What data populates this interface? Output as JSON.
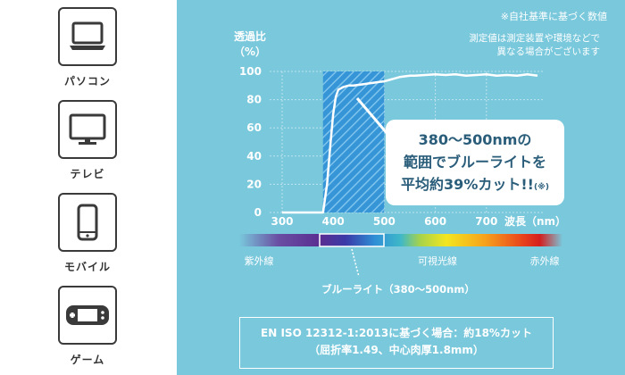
{
  "devices": [
    {
      "label": "パソコン",
      "icon": "laptop-icon"
    },
    {
      "label": "テレビ",
      "icon": "tv-icon"
    },
    {
      "label": "モバイル",
      "icon": "smartphone-icon"
    },
    {
      "label": "ゲーム",
      "icon": "game-console-icon"
    }
  ],
  "notes": {
    "company_standard": "※自社基準に基づく数値",
    "variance_line1": "測定値は測定装置や環境などで",
    "variance_line2": "異なる場合がございます"
  },
  "callout": {
    "line1": "380〜500nmの",
    "line2": "範囲でブルーライトを",
    "line3": "平均約39%カット!!",
    "line3_note": "(※)"
  },
  "spectrum": {
    "left_label": "紫外線",
    "center_label": "可視光線",
    "right_label": "赤外線",
    "bluelight_label": "ブルーライト（380〜500nm）"
  },
  "spec_box": {
    "line1": "EN ISO 12312-1:2013に基づく場合：約18%カット",
    "line2": "（屈折率1.49、中心肉厚1.8mm）"
  },
  "colors": {
    "panel_bg": "#79c8dc",
    "highlight": "#2f8fd6",
    "curve": "#ffffff",
    "callout_text": "#2a5d7a"
  },
  "chart_data": {
    "type": "line",
    "ylabel_line1": "透過比",
    "ylabel_line2": "（%）",
    "xlabel": "波長（nm）",
    "xlim": [
      300,
      800
    ],
    "ylim": [
      0,
      100
    ],
    "xticks": [
      300,
      400,
      500,
      600,
      700
    ],
    "yticks": [
      0,
      20,
      40,
      60,
      80,
      100
    ],
    "highlight_range": [
      380,
      500
    ],
    "grid": true,
    "series": [
      {
        "x": [
          300,
          380,
          388,
          395,
          400,
          405,
          410,
          420,
          430,
          440,
          450,
          460,
          470,
          480,
          490,
          500,
          510,
          520,
          530,
          540,
          550,
          560,
          580,
          600,
          620,
          640,
          660,
          680,
          700,
          720,
          740,
          760,
          780,
          800
        ],
        "y": [
          0,
          0,
          20,
          50,
          70,
          82,
          87,
          89,
          90,
          90,
          90.5,
          91,
          91.5,
          92,
          92.5,
          93,
          94,
          95,
          96,
          96.5,
          97,
          97,
          97.5,
          98,
          97.5,
          98,
          97,
          97.5,
          98,
          97,
          97.5,
          97,
          98,
          97
        ]
      }
    ]
  }
}
